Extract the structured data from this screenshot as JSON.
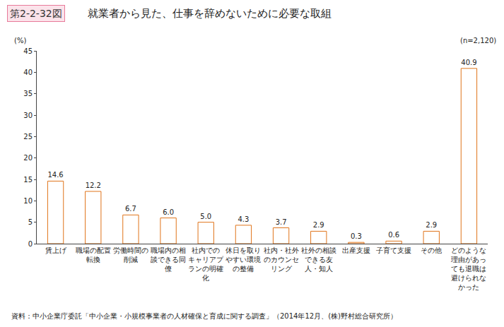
{
  "chart_data": {
    "type": "bar",
    "figure_number": "第2-2-32図",
    "title": "就業者から見た、仕事を辞めないために必要な取組",
    "y_label": "(%)",
    "annotations": [
      "(n=2,120)"
    ],
    "source": "資料：中小企業庁委託「中小企業・小規模事業者の人材確保と育成に関する調査」（2014年12月、(株)野村総合研究所）",
    "categories": [
      "賃上げ",
      "職場の配置\n転換",
      "労働時間の\n削減",
      "職場内の相\n談できる同\n僚",
      "社内での\nキャリアプ\nランの明確\n化",
      "休日を取り\nやすい環境\nの整備",
      "社内・社外\nのカウンセ\nリング",
      "社外の相談\nできる友\n人・知人",
      "出産支援",
      "子育て支援",
      "その他",
      "どのような\n理由があっ\nても退職は\n避けられな\nかった"
    ],
    "values": [
      14.6,
      12.2,
      6.7,
      6.0,
      5.0,
      4.3,
      3.7,
      2.9,
      0.3,
      0.6,
      2.9,
      40.9
    ],
    "value_labels": [
      "14.6",
      "12.2",
      "6.7",
      "6.0",
      "5.0",
      "4.3",
      "3.7",
      "2.9",
      "0.3",
      "0.6",
      "2.9",
      "40.9"
    ],
    "data_labels": true,
    "color": "#f59a3c",
    "ylim": [
      0,
      45
    ],
    "yticks": [
      0,
      5,
      10,
      15,
      20,
      25,
      30,
      35,
      40,
      45
    ],
    "grid": false
  }
}
